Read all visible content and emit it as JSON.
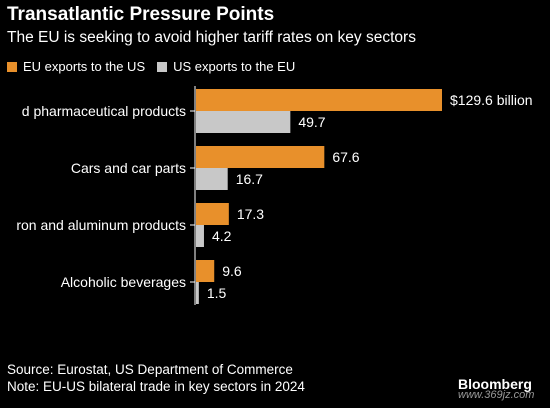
{
  "header": {
    "title": "Transatlantic Pressure Points",
    "subtitle": "The EU is seeking to avoid higher tariff rates on key sectors"
  },
  "footer": {
    "source": "Source: Eurostat, US Department of Commerce",
    "note": "Note: EU-US bilateral trade in key sectors in 2024",
    "brand": "Bloomberg",
    "watermark": "www.369jz.com"
  },
  "colors": {
    "eu": "#e8902b",
    "us": "#c8c8c8",
    "background": "#000000",
    "text": "#ffffff"
  },
  "chart_data": {
    "type": "bar",
    "orientation": "horizontal",
    "categories": [
      "Medical and pharmaceutical products",
      "Cars and car parts",
      "Iron and aluminum products",
      "Alcoholic beverages"
    ],
    "visible_category_labels": [
      "d pharmaceutical products",
      "Cars and car parts",
      "ron and aluminum products",
      "Alcoholic beverages"
    ],
    "series": [
      {
        "name": "EU exports to the US",
        "values": [
          129.6,
          67.6,
          17.3,
          9.6
        ],
        "labels": [
          "$129.6 billion",
          "67.6",
          "17.3",
          "9.6"
        ]
      },
      {
        "name": "US exports to the EU",
        "values": [
          49.7,
          16.7,
          4.2,
          1.5
        ],
        "labels": [
          "49.7",
          "16.7",
          "4.2",
          "1.5"
        ]
      }
    ],
    "xlim": [
      0,
      129.6
    ],
    "legend": "top-left",
    "grid": false,
    "unit": "billion USD"
  }
}
